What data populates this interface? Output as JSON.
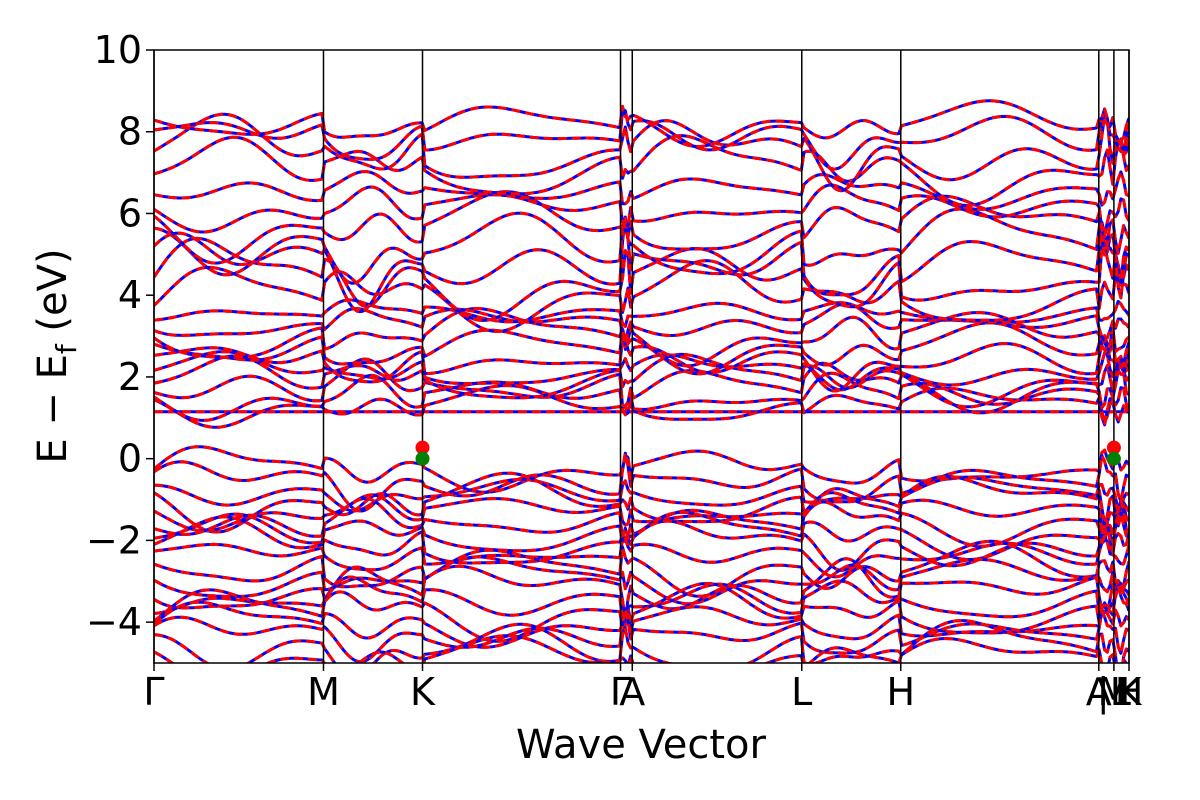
{
  "chart_data": {
    "type": "line",
    "title": "",
    "xlabel": "Wave Vector",
    "ylabel": {
      "main": "E − E",
      "sub": "f",
      "unit": " (eV)"
    },
    "ylim": [
      -5,
      10
    ],
    "yticks": [
      {
        "value": 10,
        "label": "10"
      },
      {
        "value": 8,
        "label": "8"
      },
      {
        "value": 6,
        "label": "6"
      },
      {
        "value": 4,
        "label": "4"
      },
      {
        "value": 2,
        "label": "2"
      },
      {
        "value": 0,
        "label": "0"
      },
      {
        "value": -2,
        "label": "−2"
      },
      {
        "value": -4,
        "label": "−4"
      }
    ],
    "x_range": [
      0,
      5.81
    ],
    "kpoints": [
      {
        "x": 0.0,
        "label": "Γ"
      },
      {
        "x": 1.01,
        "label": "M"
      },
      {
        "x": 1.6,
        "label": "K"
      },
      {
        "x": 2.78,
        "label": "Γ"
      },
      {
        "x": 2.85,
        "label": "A"
      },
      {
        "x": 3.86,
        "label": "L"
      },
      {
        "x": 4.45,
        "label": "H"
      },
      {
        "x": 5.63,
        "label": "A"
      },
      {
        "x": 5.72,
        "label": "M"
      },
      {
        "x": 5.72,
        "label": "|L"
      },
      {
        "x": 5.81,
        "label": "H"
      },
      {
        "x": 5.81,
        "label": "K"
      }
    ],
    "grid": false,
    "legend": "none",
    "series": [
      {
        "style": "solid",
        "color": "#0000ff",
        "linewidth": 3
      },
      {
        "style": "dashed",
        "color": "#ff0000",
        "linewidth": 3
      }
    ],
    "markers": [
      {
        "x": 1.6,
        "y": 0.27,
        "color": "#ff0000",
        "label": "CBM"
      },
      {
        "x": 1.6,
        "y": 0.0,
        "color": "#008000",
        "label": "VBM"
      },
      {
        "x": 5.72,
        "y": 0.27,
        "color": "#ff0000",
        "label": "CBM"
      },
      {
        "x": 5.72,
        "y": 0.0,
        "color": "#008000",
        "label": "VBM"
      }
    ],
    "bands": {
      "valence": [
        {
          "base": -0.25,
          "amp": 0.45
        },
        {
          "base": -0.55,
          "amp": 0.55
        },
        {
          "base": -0.85,
          "amp": 0.35
        },
        {
          "base": -1.05,
          "amp": 0.55
        },
        {
          "base": -1.3,
          "amp": 0.4
        },
        {
          "base": -1.6,
          "amp": 0.5
        },
        {
          "base": -1.85,
          "amp": 0.45
        },
        {
          "base": -2.1,
          "amp": 0.55
        },
        {
          "base": -2.35,
          "amp": 0.4
        },
        {
          "base": -2.7,
          "amp": 0.55
        },
        {
          "base": -2.95,
          "amp": 0.45
        },
        {
          "base": -3.2,
          "amp": 0.6
        },
        {
          "base": -3.5,
          "amp": 0.5
        },
        {
          "base": -3.75,
          "amp": 0.55
        },
        {
          "base": -4.05,
          "amp": 0.45
        },
        {
          "base": -4.3,
          "amp": 0.5
        },
        {
          "base": -4.65,
          "amp": 0.6
        },
        {
          "base": -4.9,
          "amp": 0.45
        }
      ],
      "conduction": [
        {
          "base": 1.15,
          "amp": 0.0
        },
        {
          "base": 1.3,
          "amp": 0.35
        },
        {
          "base": 1.5,
          "amp": 0.45
        },
        {
          "base": 1.75,
          "amp": 0.5
        },
        {
          "base": 1.95,
          "amp": 0.45
        },
        {
          "base": 2.15,
          "amp": 0.35
        },
        {
          "base": 2.4,
          "amp": 0.5
        },
        {
          "base": 2.7,
          "amp": 0.45
        },
        {
          "base": 3.0,
          "amp": 0.5
        },
        {
          "base": 3.3,
          "amp": 0.35
        },
        {
          "base": 3.55,
          "amp": 0.25
        },
        {
          "base": 4.0,
          "amp": 0.6
        },
        {
          "base": 4.4,
          "amp": 0.75
        },
        {
          "base": 4.8,
          "amp": 0.8
        },
        {
          "base": 5.2,
          "amp": 0.7
        },
        {
          "base": 5.7,
          "amp": 0.6
        },
        {
          "base": 6.1,
          "amp": 0.45
        },
        {
          "base": 6.55,
          "amp": 0.35
        },
        {
          "base": 7.1,
          "amp": 0.6
        },
        {
          "base": 7.5,
          "amp": 0.7
        },
        {
          "base": 7.9,
          "amp": 0.55
        },
        {
          "base": 8.2,
          "amp": 0.4
        }
      ]
    }
  }
}
